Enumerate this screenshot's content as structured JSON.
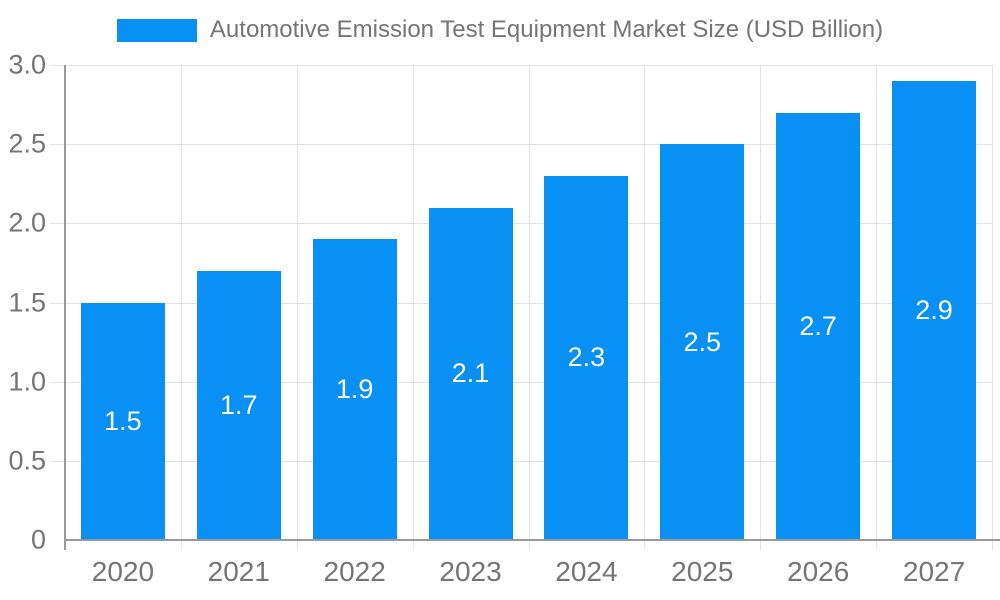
{
  "legend": {
    "title": "Automotive Emission Test Equipment Market Size (USD Billion)"
  },
  "chart_data": {
    "type": "bar",
    "title": "Automotive Emission Test Equipment Market Size (USD Billion)",
    "categories": [
      "2020",
      "2021",
      "2022",
      "2023",
      "2024",
      "2025",
      "2026",
      "2027"
    ],
    "values": [
      1.5,
      1.7,
      1.9,
      2.1,
      2.3,
      2.5,
      2.7,
      2.9
    ],
    "bar_labels": [
      "1.5",
      "1.7",
      "1.9",
      "2.1",
      "2.3",
      "2.5",
      "2.7",
      "2.9"
    ],
    "xlabel": "",
    "ylabel": "",
    "ylim": [
      0,
      3
    ],
    "yticks": [
      {
        "value": 0,
        "label": "0"
      },
      {
        "value": 0.5,
        "label": "0.5"
      },
      {
        "value": 1.0,
        "label": "1.0"
      },
      {
        "value": 1.5,
        "label": "1.5"
      },
      {
        "value": 2.0,
        "label": "2.0"
      },
      {
        "value": 2.5,
        "label": "2.5"
      },
      {
        "value": 3.0,
        "label": "3.0"
      }
    ],
    "grid": true,
    "legend_position": "top",
    "colors": {
      "bar": "#0990F5",
      "grid": "#e3e3e3",
      "axis": "#999999",
      "tick_text": "#757575",
      "bar_label_text": "#ffffff",
      "background": "#ffffff"
    }
  }
}
